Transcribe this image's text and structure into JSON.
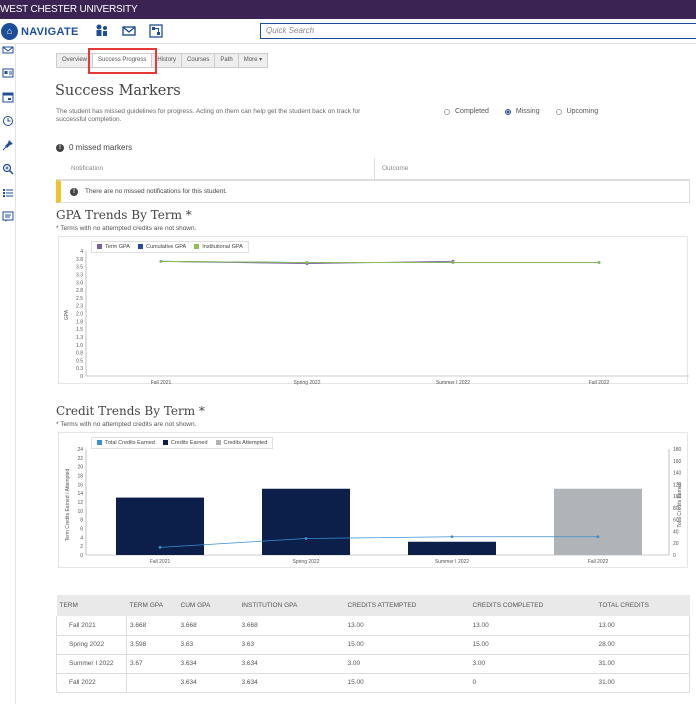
{
  "header": {
    "university": "WEST CHESTER UNIVERSITY"
  },
  "navbar": {
    "brand": "NAVIGATE",
    "search_placeholder": "Quick Search"
  },
  "tabs": [
    {
      "label": "Overview"
    },
    {
      "label": "Success Progress"
    },
    {
      "label": "History"
    },
    {
      "label": "Courses"
    },
    {
      "label": "Path"
    },
    {
      "label": "More ▾"
    }
  ],
  "success_markers": {
    "title": "Success Markers",
    "description": "The student has missed guidelines for progress. Acting on them can help get the student back on track for successful completion.",
    "filters": [
      {
        "label": "Completed",
        "selected": false
      },
      {
        "label": "Missing",
        "selected": true
      },
      {
        "label": "Upcoming",
        "selected": false
      }
    ],
    "missed_count_label": "0 missed markers",
    "columns": {
      "notification": "Notification",
      "outcome": "Outcome"
    },
    "empty_notice": "There are no missed notifications for this student."
  },
  "gpa_section": {
    "title": "GPA Trends By Term *",
    "note": "* Terms with no attempted credits are not shown."
  },
  "credit_section": {
    "title": "Credit Trends By Term *",
    "note": "* Terms with no attempted credits are not shown."
  },
  "chart_data": [
    {
      "type": "line",
      "legend_position": "top-left",
      "categories": [
        "Fall 2021",
        "Spring 2022",
        "Summer I 2022",
        "Fall 2022"
      ],
      "ylabel": "GPA",
      "ylim": [
        0,
        4
      ],
      "yticks": [
        "0",
        "0.3",
        "0.5",
        "0.8",
        "1.0",
        "1.3",
        "1.5",
        "1.8",
        "2.0",
        "2.3",
        "2.5",
        "2.8",
        "3.0",
        "3.3",
        "3.5",
        "3.8",
        "4"
      ],
      "series": [
        {
          "name": "Term GPA",
          "color": "#7b5ea7",
          "values": [
            3.668,
            3.598,
            3.67,
            null
          ]
        },
        {
          "name": "Cumulative GPA",
          "color": "#1c4e9a",
          "values": [
            3.668,
            3.63,
            3.634,
            3.634
          ]
        },
        {
          "name": "Institutional GPA",
          "color": "#8cc152",
          "values": [
            3.668,
            3.63,
            3.634,
            3.634
          ]
        }
      ]
    },
    {
      "type": "bar",
      "legend_position": "top-left",
      "categories": [
        "Fall 2021",
        "Spring 2022",
        "Summer I 2022",
        "Fall 2022"
      ],
      "ylabel": "Term Credits Earned / Attempted",
      "y2label": "Total Credits Earned",
      "ylim": [
        0,
        24
      ],
      "y2lim": [
        0,
        180
      ],
      "yticks": [
        "0",
        "2",
        "4",
        "6",
        "8",
        "10",
        "12",
        "14",
        "16",
        "18",
        "20",
        "22",
        "24"
      ],
      "y2ticks": [
        "0",
        "20",
        "40",
        "60",
        "80",
        "100",
        "120",
        "140",
        "160",
        "180"
      ],
      "series": [
        {
          "name": "Total Credits Earned",
          "color": "#3b8fd1",
          "values": [
            13,
            28,
            31,
            31
          ]
        },
        {
          "name": "Credits Earned",
          "color": "#0b1f4a",
          "values": [
            13,
            15,
            3,
            0
          ]
        },
        {
          "name": "Credits Attempted",
          "color": "#b0b3b8",
          "values": [
            13,
            15,
            3,
            15
          ]
        }
      ]
    }
  ],
  "credit_table": {
    "headers": [
      "TERM",
      "TERM GPA",
      "CUM GPA",
      "INSTITUTION GPA",
      "CREDITS ATTEMPTED",
      "CREDITS COMPLETED",
      "TOTAL CREDITS"
    ],
    "rows": [
      [
        "Fall 2021",
        "3.668",
        "3.668",
        "3.668",
        "13.00",
        "13.00",
        "13.00"
      ],
      [
        "Spring 2022",
        "3.598",
        "3.63",
        "3.63",
        "15.00",
        "15.00",
        "28.00"
      ],
      [
        "Summer I 2022",
        "3.67",
        "3.634",
        "3.634",
        "3.00",
        "3.00",
        "31.00"
      ],
      [
        "Fall 2022",
        "",
        "3.634",
        "3.634",
        "15.00",
        "0",
        "31.00"
      ]
    ]
  }
}
